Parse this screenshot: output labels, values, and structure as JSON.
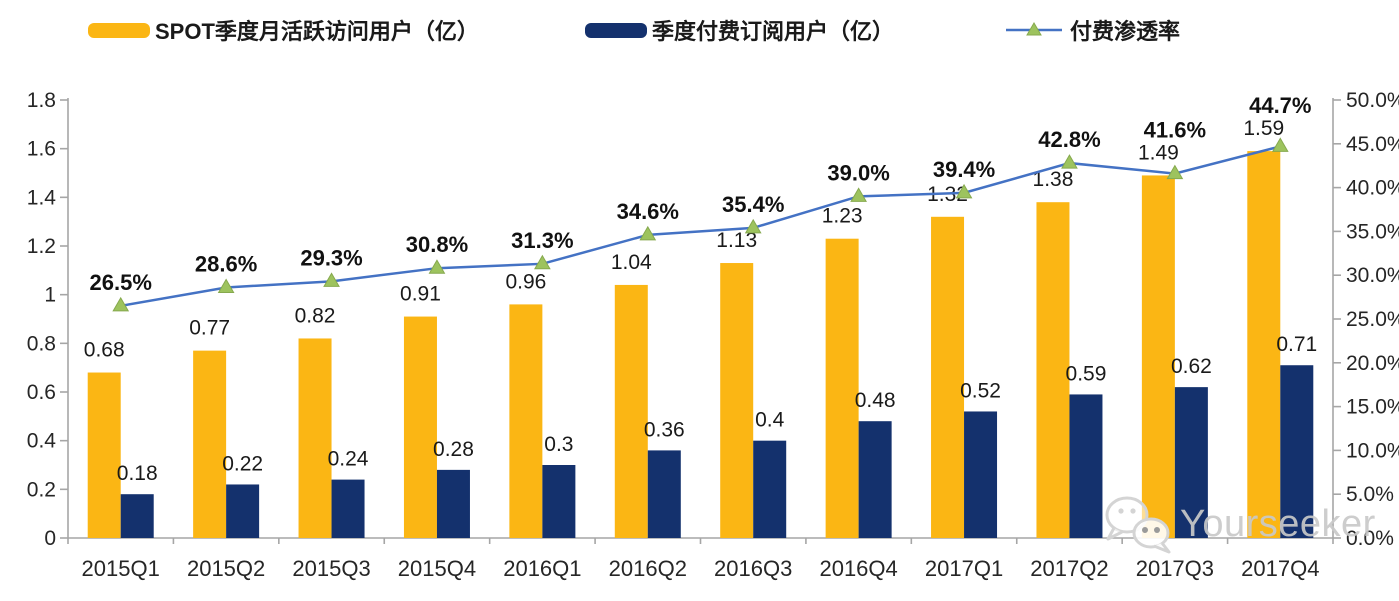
{
  "legend": {
    "items": [
      {
        "label": "SPOT季度月活跃访问用户（亿）",
        "color": "#FBB614"
      },
      {
        "label": "季度付费订阅用户（亿）",
        "color": "#14316D"
      },
      {
        "label": "付费渗透率",
        "line_color": "#4472C4",
        "marker_color": "#9DC35E"
      }
    ]
  },
  "watermark": {
    "icon": "wechat-icon",
    "text": "Yourseeker"
  },
  "chart_data": {
    "type": "combo",
    "subtype": "grouped-bars-with-line",
    "title": "",
    "legend_position": "top",
    "grid": false,
    "categories": [
      "2015Q1",
      "2015Q2",
      "2015Q3",
      "2015Q4",
      "2016Q1",
      "2016Q2",
      "2016Q3",
      "2016Q4",
      "2017Q1",
      "2017Q2",
      "2017Q3",
      "2017Q4"
    ],
    "series": [
      {
        "name": "SPOT季度月活跃访问用户（亿）",
        "type": "bar",
        "axis": "left",
        "color": "#FBB614",
        "values": [
          0.68,
          0.77,
          0.82,
          0.91,
          0.96,
          1.04,
          1.13,
          1.23,
          1.32,
          1.38,
          1.49,
          1.59
        ],
        "labels": [
          "0.68",
          "0.77",
          "0.82",
          "0.91",
          "0.96",
          "1.04",
          "1.13",
          "1.23",
          "1.32",
          "1.38",
          "1.49",
          "1.59"
        ]
      },
      {
        "name": "季度付费订阅用户（亿）",
        "type": "bar",
        "axis": "left",
        "color": "#14316D",
        "values": [
          0.18,
          0.22,
          0.24,
          0.28,
          0.3,
          0.36,
          0.4,
          0.48,
          0.52,
          0.59,
          0.62,
          0.71
        ],
        "labels": [
          "0.18",
          "0.22",
          "0.24",
          "0.28",
          "0.3",
          "0.36",
          "0.4",
          "0.48",
          "0.52",
          "0.59",
          "0.62",
          "0.71"
        ]
      },
      {
        "name": "付费渗透率",
        "type": "line",
        "axis": "right",
        "color": "#4472C4",
        "marker": "triangle",
        "marker_color": "#9DC35E",
        "values": [
          26.5,
          28.6,
          29.3,
          30.8,
          31.3,
          34.6,
          35.4,
          39.0,
          39.4,
          42.8,
          41.6,
          44.7
        ],
        "labels": [
          "26.5%",
          "28.6%",
          "29.3%",
          "30.8%",
          "31.3%",
          "34.6%",
          "35.4%",
          "39.0%",
          "39.4%",
          "42.8%",
          "41.6%",
          "44.7%"
        ]
      }
    ],
    "left_axis": {
      "min": 0,
      "max": 1.8,
      "tick_labels": [
        "0",
        "0.2",
        "0.4",
        "0.6",
        "0.8",
        "1",
        "1.2",
        "1.4",
        "1.6",
        "1.8"
      ]
    },
    "right_axis": {
      "min": 0,
      "max": 50,
      "tick_labels": [
        "0.0%",
        "5.0%",
        "10.0%",
        "15.0%",
        "20.0%",
        "25.0%",
        "30.0%",
        "35.0%",
        "40.0%",
        "45.0%",
        "50.0%"
      ]
    }
  }
}
